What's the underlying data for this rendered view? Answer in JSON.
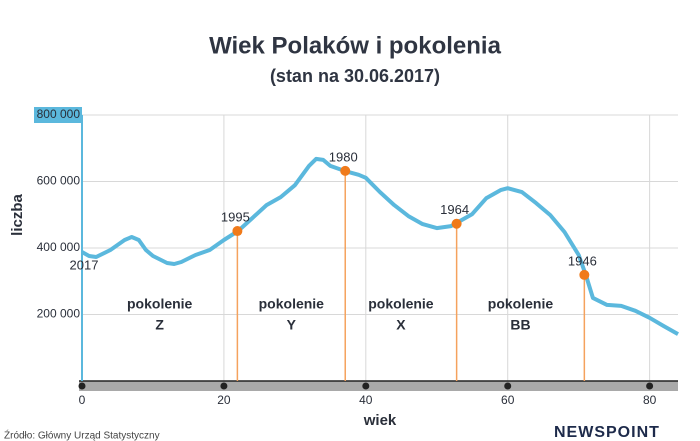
{
  "title": "Wiek Polaków i pokolenia",
  "subtitle": "(stan na 30.06.2017)",
  "source": "Źródło: Główny Urząd Statystyczny",
  "logo": "NEWSPOINT",
  "chart_data": {
    "type": "line",
    "x_label": "wiek",
    "y_label": "liczba",
    "grid": true,
    "color": "#5bb8dd",
    "marker_color": "#f07a1a",
    "xlim": [
      0,
      84
    ],
    "xticks": [
      0,
      20,
      40,
      60,
      80
    ],
    "ylim": [
      0,
      800000
    ],
    "yticks": [
      {
        "value": 200000,
        "label": "200 000"
      },
      {
        "value": 400000,
        "label": "400 000"
      },
      {
        "value": 600000,
        "label": "600 000"
      },
      {
        "value": 800000,
        "label": "800 000"
      }
    ],
    "x": [
      0,
      1,
      2,
      4,
      6,
      7,
      8,
      9,
      10,
      12,
      13,
      14,
      16,
      18,
      20,
      22,
      24,
      26,
      28,
      30,
      32,
      33,
      34,
      35,
      37,
      39,
      40,
      42,
      44,
      46,
      48,
      50,
      52,
      53,
      55,
      57,
      59,
      60,
      62,
      64,
      66,
      68,
      70,
      71,
      72,
      74,
      76,
      78,
      80,
      82,
      84
    ],
    "values": [
      388000,
      376000,
      373000,
      394000,
      424000,
      433000,
      424000,
      394000,
      376000,
      355000,
      352000,
      358000,
      379000,
      394000,
      424000,
      451000,
      490000,
      529000,
      553000,
      589000,
      647000,
      668000,
      665000,
      647000,
      632000,
      620000,
      611000,
      568000,
      529000,
      496000,
      472000,
      460000,
      466000,
      478000,
      502000,
      550000,
      574000,
      580000,
      568000,
      535000,
      499000,
      448000,
      379000,
      319000,
      250000,
      229000,
      226000,
      211000,
      190000,
      165000,
      141000
    ],
    "start_label": "2017",
    "annotations": [
      {
        "label": "1995",
        "x": 21.9,
        "y": 451000
      },
      {
        "label": "1980",
        "x": 37.1,
        "y": 632000
      },
      {
        "label": "1964",
        "x": 52.8,
        "y": 473000
      },
      {
        "label": "1946",
        "x": 70.8,
        "y": 319000
      }
    ],
    "generations": [
      {
        "line1": "pokolenie",
        "line2": "Z"
      },
      {
        "line1": "pokolenie",
        "line2": "Y"
      },
      {
        "line1": "pokolenie",
        "line2": "X"
      },
      {
        "line1": "pokolenie",
        "line2": "BB"
      }
    ]
  }
}
